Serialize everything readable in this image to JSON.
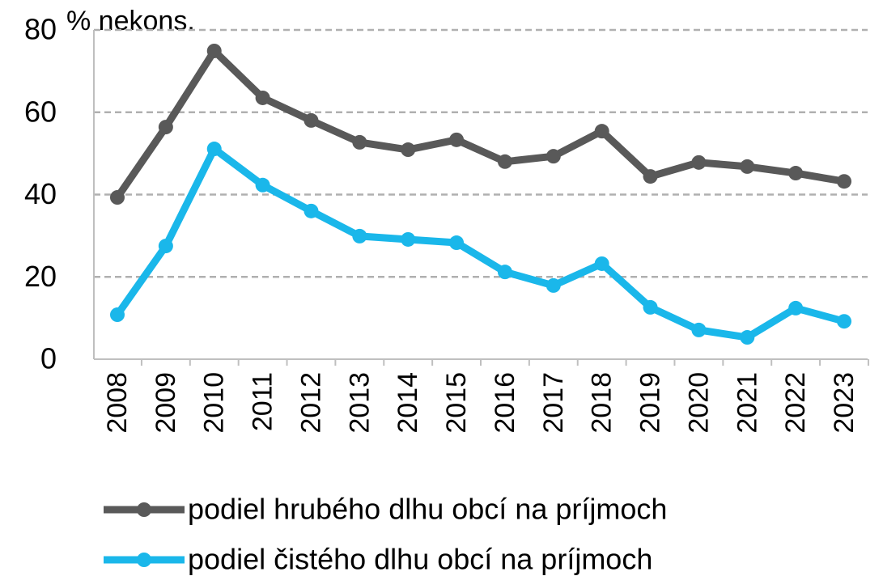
{
  "chart_data": {
    "type": "line",
    "y_axis_label": "% nekons.",
    "categories": [
      "2008",
      "2009",
      "2010",
      "2011",
      "2012",
      "2013",
      "2014",
      "2015",
      "2016",
      "2017",
      "2018",
      "2019",
      "2020",
      "2021",
      "2022",
      "2023"
    ],
    "series": [
      {
        "name": "podiel hrubého dlhu obcí na príjmoch",
        "color": "#595959",
        "values": [
          39.3,
          56.4,
          74.9,
          63.5,
          58.0,
          52.7,
          50.9,
          53.3,
          48.0,
          49.3,
          55.4,
          44.4,
          47.8,
          46.8,
          45.2,
          43.2
        ]
      },
      {
        "name": "podiel čistého dlhu obcí na príjmoch",
        "color": "#1ab7ea",
        "values": [
          10.8,
          27.5,
          51.1,
          42.3,
          36.0,
          29.9,
          29.1,
          28.3,
          21.2,
          17.9,
          23.2,
          12.6,
          7.1,
          5.3,
          12.4,
          9.2
        ]
      }
    ],
    "ylim": [
      0,
      80
    ],
    "yticks": [
      0,
      20,
      40,
      60,
      80
    ],
    "grid": true,
    "legend": "bottom"
  }
}
